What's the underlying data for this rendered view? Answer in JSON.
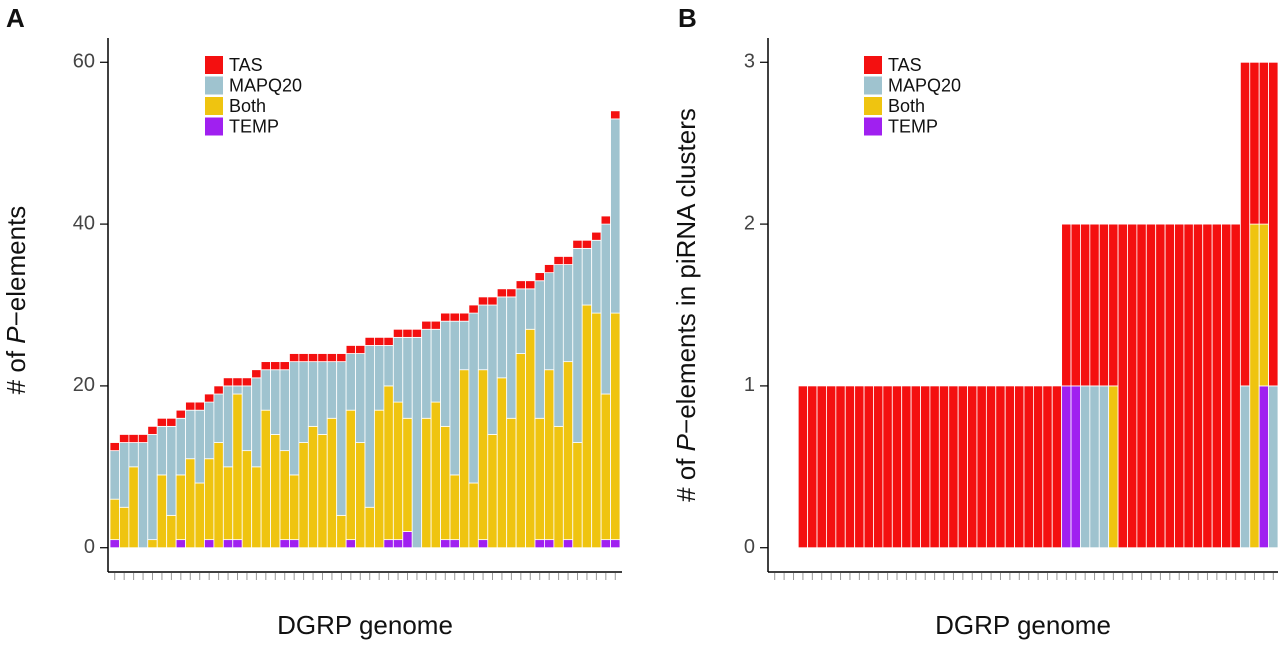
{
  "chart_data": [
    {
      "type": "bar",
      "stacked": true,
      "panel": "A",
      "x_label": "DGRP genome",
      "y_label": [
        "# of ",
        "P",
        "−elements"
      ],
      "legend": "top-left",
      "ylim": [
        -3,
        63
      ],
      "yticks": [
        0,
        20,
        40,
        60
      ],
      "categories": [
        null,
        null,
        null,
        null,
        null,
        null,
        null,
        null,
        null,
        null,
        null,
        null,
        null,
        null,
        null,
        null,
        null,
        null,
        null,
        null,
        null,
        null,
        null,
        null,
        null,
        null,
        null,
        null,
        null,
        null,
        null,
        null,
        null,
        null,
        null,
        null,
        null,
        null,
        null,
        null,
        null,
        null,
        null,
        null,
        null,
        null,
        null,
        null,
        null,
        null,
        null,
        null,
        null,
        null
      ],
      "series": [
        {
          "name": "TAS",
          "color": "#f41010",
          "values": [
            1,
            1,
            1,
            1,
            1,
            1,
            1,
            1,
            1,
            1,
            1,
            1,
            1,
            1,
            1,
            1,
            1,
            1,
            1,
            1,
            1,
            1,
            1,
            1,
            1,
            1,
            1,
            1,
            1,
            1,
            1,
            1,
            1,
            1,
            1,
            1,
            1,
            1,
            1,
            1,
            1,
            1,
            1,
            1,
            1,
            1,
            1,
            1,
            1,
            1,
            1,
            1,
            1,
            1
          ]
        },
        {
          "name": "MAPQ20",
          "color": "#9fc3cf",
          "values": [
            6,
            8,
            3,
            13,
            13,
            6,
            11,
            7,
            6,
            9,
            7,
            6,
            10,
            1,
            8,
            11,
            5,
            8,
            10,
            14,
            10,
            8,
            9,
            7,
            19,
            7,
            11,
            20,
            8,
            5,
            8,
            10,
            26,
            11,
            9,
            13,
            19,
            6,
            21,
            8,
            16,
            10,
            15,
            8,
            5,
            17,
            12,
            20,
            12,
            24,
            7,
            9,
            21,
            24
          ]
        },
        {
          "name": "Both",
          "color": "#efc410",
          "values": [
            5,
            5,
            10,
            0,
            1,
            9,
            4,
            8,
            11,
            8,
            10,
            13,
            9,
            18,
            12,
            10,
            17,
            14,
            11,
            8,
            13,
            15,
            14,
            16,
            4,
            16,
            13,
            5,
            17,
            19,
            17,
            14,
            0,
            16,
            18,
            14,
            8,
            22,
            8,
            21,
            14,
            21,
            16,
            24,
            27,
            15,
            21,
            15,
            22,
            13,
            30,
            29,
            18,
            28
          ]
        },
        {
          "name": "TEMP",
          "color": "#a020f0",
          "values": [
            1,
            0,
            0,
            0,
            0,
            0,
            0,
            1,
            0,
            0,
            1,
            0,
            1,
            1,
            0,
            0,
            0,
            0,
            1,
            1,
            0,
            0,
            0,
            0,
            0,
            1,
            0,
            0,
            0,
            1,
            1,
            2,
            0,
            0,
            0,
            1,
            1,
            0,
            0,
            1,
            0,
            0,
            0,
            0,
            0,
            1,
            1,
            0,
            1,
            0,
            0,
            0,
            1,
            1
          ]
        }
      ]
    },
    {
      "type": "bar",
      "stacked": true,
      "panel": "B",
      "x_label": "DGRP genome",
      "y_label": [
        "# of ",
        "P",
        "−elements in piRNA clusters"
      ],
      "legend": "top-left",
      "ylim": [
        -0.15,
        3.15
      ],
      "yticks": [
        0,
        1,
        2,
        3
      ],
      "categories": [
        null,
        null,
        null,
        null,
        null,
        null,
        null,
        null,
        null,
        null,
        null,
        null,
        null,
        null,
        null,
        null,
        null,
        null,
        null,
        null,
        null,
        null,
        null,
        null,
        null,
        null,
        null,
        null,
        null,
        null,
        null,
        null,
        null,
        null,
        null,
        null,
        null,
        null,
        null,
        null,
        null,
        null,
        null,
        null,
        null,
        null,
        null,
        null,
        null,
        null,
        null,
        null,
        null,
        null
      ],
      "series": [
        {
          "name": "TAS",
          "color": "#f41010",
          "values": [
            0,
            0,
            0,
            1,
            1,
            1,
            1,
            1,
            1,
            1,
            1,
            1,
            1,
            1,
            1,
            1,
            1,
            1,
            1,
            1,
            1,
            1,
            1,
            1,
            1,
            1,
            1,
            1,
            1,
            1,
            1,
            1,
            1,
            1,
            1,
            1,
            1,
            2,
            2,
            2,
            2,
            2,
            2,
            2,
            2,
            2,
            2,
            2,
            2,
            2,
            2,
            1,
            1,
            2
          ]
        },
        {
          "name": "MAPQ20",
          "color": "#9fc3cf",
          "values": [
            0,
            0,
            0,
            0,
            0,
            0,
            0,
            0,
            0,
            0,
            0,
            0,
            0,
            0,
            0,
            0,
            0,
            0,
            0,
            0,
            0,
            0,
            0,
            0,
            0,
            0,
            0,
            0,
            0,
            0,
            0,
            0,
            0,
            1,
            1,
            1,
            0,
            0,
            0,
            0,
            0,
            0,
            0,
            0,
            0,
            0,
            0,
            0,
            0,
            0,
            1,
            0,
            0,
            1
          ]
        },
        {
          "name": "Both",
          "color": "#efc410",
          "values": [
            0,
            0,
            0,
            0,
            0,
            0,
            0,
            0,
            0,
            0,
            0,
            0,
            0,
            0,
            0,
            0,
            0,
            0,
            0,
            0,
            0,
            0,
            0,
            0,
            0,
            0,
            0,
            0,
            0,
            0,
            0,
            0,
            0,
            0,
            0,
            0,
            1,
            0,
            0,
            0,
            0,
            0,
            0,
            0,
            0,
            0,
            0,
            0,
            0,
            0,
            0,
            2,
            1,
            0
          ]
        },
        {
          "name": "TEMP",
          "color": "#a020f0",
          "values": [
            0,
            0,
            0,
            0,
            0,
            0,
            0,
            0,
            0,
            0,
            0,
            0,
            0,
            0,
            0,
            0,
            0,
            0,
            0,
            0,
            0,
            0,
            0,
            0,
            0,
            0,
            0,
            0,
            0,
            0,
            0,
            1,
            1,
            0,
            0,
            0,
            0,
            0,
            0,
            0,
            0,
            0,
            0,
            0,
            0,
            0,
            0,
            0,
            0,
            0,
            0,
            0,
            1,
            0
          ]
        }
      ]
    }
  ]
}
